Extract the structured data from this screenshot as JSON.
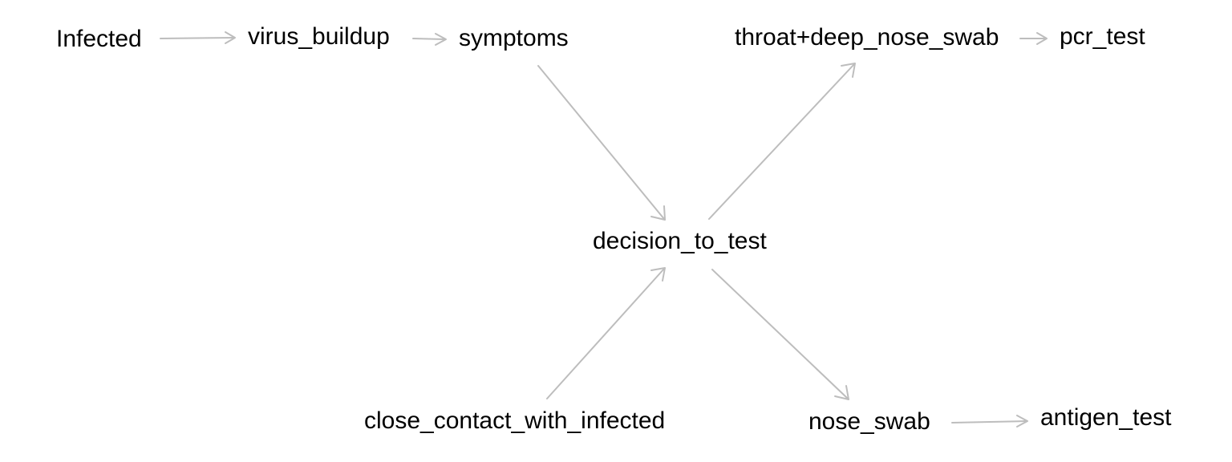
{
  "colors": {
    "background": "#ffffff",
    "edge": "#bdbdbd",
    "text": "#000000"
  },
  "nodes": {
    "infected": "Infected",
    "virus_buildup": "virus_buildup",
    "symptoms": "symptoms",
    "decision_to_test": "decision_to_test",
    "close_contact_with_infected": "close_contact_with_infected",
    "throat_deep_nose_swab": "throat+deep_nose_swab",
    "pcr_test": "pcr_test",
    "nose_swab": "nose_swab",
    "antigen_test": "antigen_test"
  },
  "edges": [
    {
      "from": "infected",
      "to": "virus_buildup"
    },
    {
      "from": "virus_buildup",
      "to": "symptoms"
    },
    {
      "from": "symptoms",
      "to": "decision_to_test"
    },
    {
      "from": "close_contact_with_infected",
      "to": "decision_to_test"
    },
    {
      "from": "decision_to_test",
      "to": "throat_deep_nose_swab"
    },
    {
      "from": "throat_deep_nose_swab",
      "to": "pcr_test"
    },
    {
      "from": "decision_to_test",
      "to": "nose_swab"
    },
    {
      "from": "nose_swab",
      "to": "antigen_test"
    }
  ]
}
